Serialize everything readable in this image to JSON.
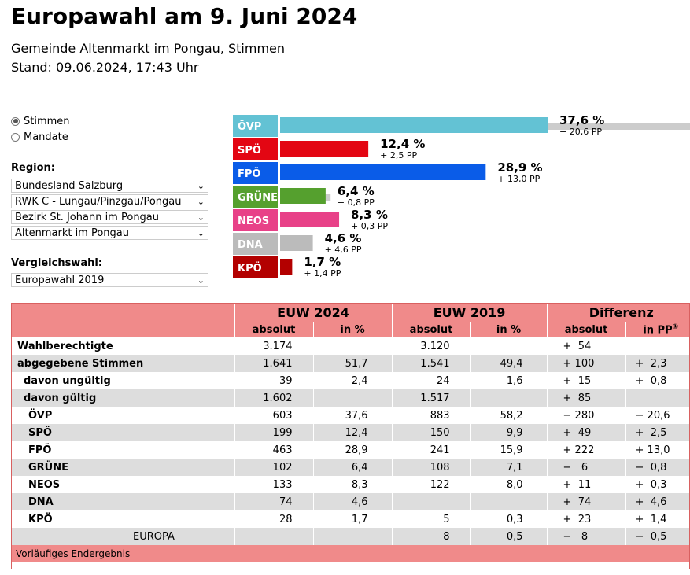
{
  "header": {
    "title": "Europawahl am 9. Juni 2024",
    "subtitle": "Gemeinde Altenmarkt im Pongau, Stimmen",
    "stand": "Stand: 09.06.2024, 17:43 Uhr"
  },
  "controls": {
    "mode_options": [
      "Stimmen",
      "Mandate"
    ],
    "mode_selected": "Stimmen",
    "region_label": "Region:",
    "regions": [
      "Bundesland Salzburg",
      "RWK C - Lungau/Pinzgau/Pongau",
      "Bezirk St. Johann im Pongau",
      "Altenmarkt im Pongau"
    ],
    "compare_label": "Vergleichswahl:",
    "compare_value": "Europawahl 2019"
  },
  "chart_data": {
    "type": "bar",
    "orientation": "horizontal",
    "categories": [
      "ÖVP",
      "SPÖ",
      "FPÖ",
      "GRÜNE",
      "NEOS",
      "DNA",
      "KPÖ"
    ],
    "series": [
      {
        "name": "EUW 2024",
        "values": [
          37.6,
          12.4,
          28.9,
          6.4,
          8.3,
          4.6,
          1.7
        ]
      },
      {
        "name": "EUW 2019",
        "values": [
          58.2,
          9.9,
          15.9,
          7.1,
          8.0,
          0,
          0.3
        ]
      }
    ],
    "value_labels": [
      "37,6 %",
      "12,4 %",
      "28,9 %",
      "6,4 %",
      "8,3 %",
      "4,6 %",
      "1,7 %"
    ],
    "diff_labels": [
      "− 20,6 PP",
      "+ 2,5 PP",
      "+ 13,0 PP",
      "− 0,8 PP",
      "+ 0,3 PP",
      "+ 4,6 PP",
      "+ 1,4 PP"
    ],
    "colors": [
      "#63c2d4",
      "#e30613",
      "#0a5ce8",
      "#55a02e",
      "#e84188",
      "#bbbbbb",
      "#b30000"
    ],
    "compare_color": "#cccccc"
  },
  "table": {
    "group_headers": [
      "EUW 2024",
      "EUW 2019",
      "Differenz"
    ],
    "sub_headers": [
      "absolut",
      "in %",
      "absolut",
      "in %",
      "absolut",
      "in PP"
    ],
    "pp_mark": "①",
    "rows": [
      {
        "label": "Wahlberechtigte",
        "level": 1,
        "c": [
          "3.174",
          "",
          "3.120",
          "",
          "+  54",
          ""
        ]
      },
      {
        "label": "abgegebene Stimmen",
        "level": 1,
        "c": [
          "1.641",
          "51,7",
          "1.541",
          "49,4",
          "+ 100",
          "+  2,3"
        ]
      },
      {
        "label": "davon ungültig",
        "level": 2,
        "c": [
          "39",
          "2,4",
          "24",
          "1,6",
          "+  15",
          "+  0,8"
        ]
      },
      {
        "label": "davon gültig",
        "level": 2,
        "c": [
          "1.602",
          "",
          "1.517",
          "",
          "+  85",
          ""
        ]
      },
      {
        "label": "ÖVP",
        "level": 3,
        "c": [
          "603",
          "37,6",
          "883",
          "58,2",
          "− 280",
          "− 20,6"
        ]
      },
      {
        "label": "SPÖ",
        "level": 3,
        "c": [
          "199",
          "12,4",
          "150",
          "9,9",
          "+  49",
          "+  2,5"
        ]
      },
      {
        "label": "FPÖ",
        "level": 3,
        "c": [
          "463",
          "28,9",
          "241",
          "15,9",
          "+ 222",
          "+ 13,0"
        ]
      },
      {
        "label": "GRÜNE",
        "level": 3,
        "c": [
          "102",
          "6,4",
          "108",
          "7,1",
          "−   6",
          "−  0,8"
        ]
      },
      {
        "label": "NEOS",
        "level": 3,
        "c": [
          "133",
          "8,3",
          "122",
          "8,0",
          "+  11",
          "+  0,3"
        ]
      },
      {
        "label": "DNA",
        "level": 3,
        "c": [
          "74",
          "4,6",
          "",
          "",
          "+  74",
          "+  4,6"
        ]
      },
      {
        "label": "KPÖ",
        "level": 3,
        "c": [
          "28",
          "1,7",
          "5",
          "0,3",
          "+  23",
          "+  1,4"
        ]
      },
      {
        "label": "EUROPA",
        "level": 4,
        "c": [
          "",
          "",
          "8",
          "0,5",
          "−   8",
          "−  0,5"
        ]
      }
    ],
    "footer": "Vorläufiges Endergebnis"
  }
}
